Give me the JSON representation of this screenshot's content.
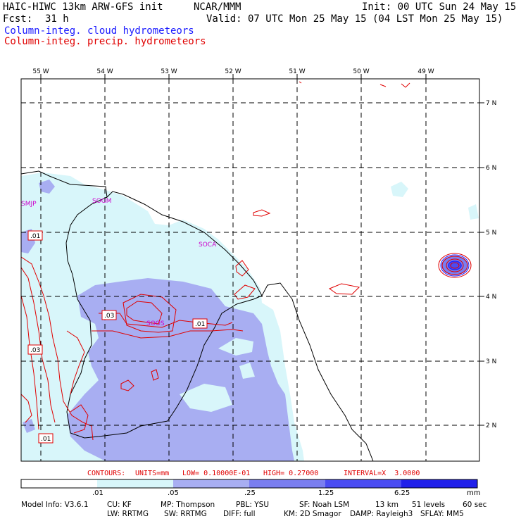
{
  "header": {
    "model": "HAIC-HIWC 13km ARW-GFS init",
    "org": "NCAR/MMM",
    "init": "Init: 00 UTC Sun 24 May 15",
    "fcst_label": "Fcst:",
    "fcst_value": "31 h",
    "valid": "Valid: 07 UTC Mon 25 May 15 (04 LST Mon 25 May 15)",
    "legend_cloud": "Column-integ. cloud hydrometeors",
    "legend_precip": "Column-integ. precip. hydrometeors"
  },
  "colors": {
    "cloud_line": "#1a1aff",
    "precip_line": "#e00000",
    "shade_1": "#d8f6fa",
    "shade_2": "#a8aef2",
    "shade_3": "#7a7ef0",
    "shade_4": "#4a4cf2",
    "shade_5": "#2020ea",
    "station": "#cc00cc"
  },
  "map": {
    "lon_labels": [
      "55 W",
      "54 W",
      "53 W",
      "52 W",
      "51 W",
      "50 W",
      "49 W"
    ],
    "lat_labels": [
      "7 N",
      "6 N",
      "5 N",
      "4 N",
      "3 N",
      "2 N"
    ],
    "stations": [
      "SMJP",
      "SOGM",
      "SOCA",
      "SOOS"
    ],
    "contour_labels": [
      ".01",
      ".03",
      ".01",
      ".03",
      ".01"
    ]
  },
  "contours_line": {
    "label": "CONTOURS:",
    "units": "UNITS=mm",
    "low": "LOW= 0.10000E-01",
    "high": "HIGH= 0.27000",
    "interval": "INTERVAL=X  3.0000"
  },
  "colorbar": {
    "ticks": [
      ".01",
      ".05",
      ".25",
      "1.25",
      "6.25"
    ],
    "unit": "mm"
  },
  "model_info": {
    "line1": [
      "Model Info: V3.6.1",
      "CU: KF",
      "MP: Thompson",
      "PBL: YSU",
      "SF: Noah LSM",
      "13 km",
      "51 levels",
      "60 sec"
    ],
    "line2": [
      "LW: RRTMG",
      "SW: RRTMG",
      "DIFF: full",
      "KM: 2D Smagor",
      "DAMP: Rayleigh3",
      "SFLAY: MM5"
    ]
  }
}
